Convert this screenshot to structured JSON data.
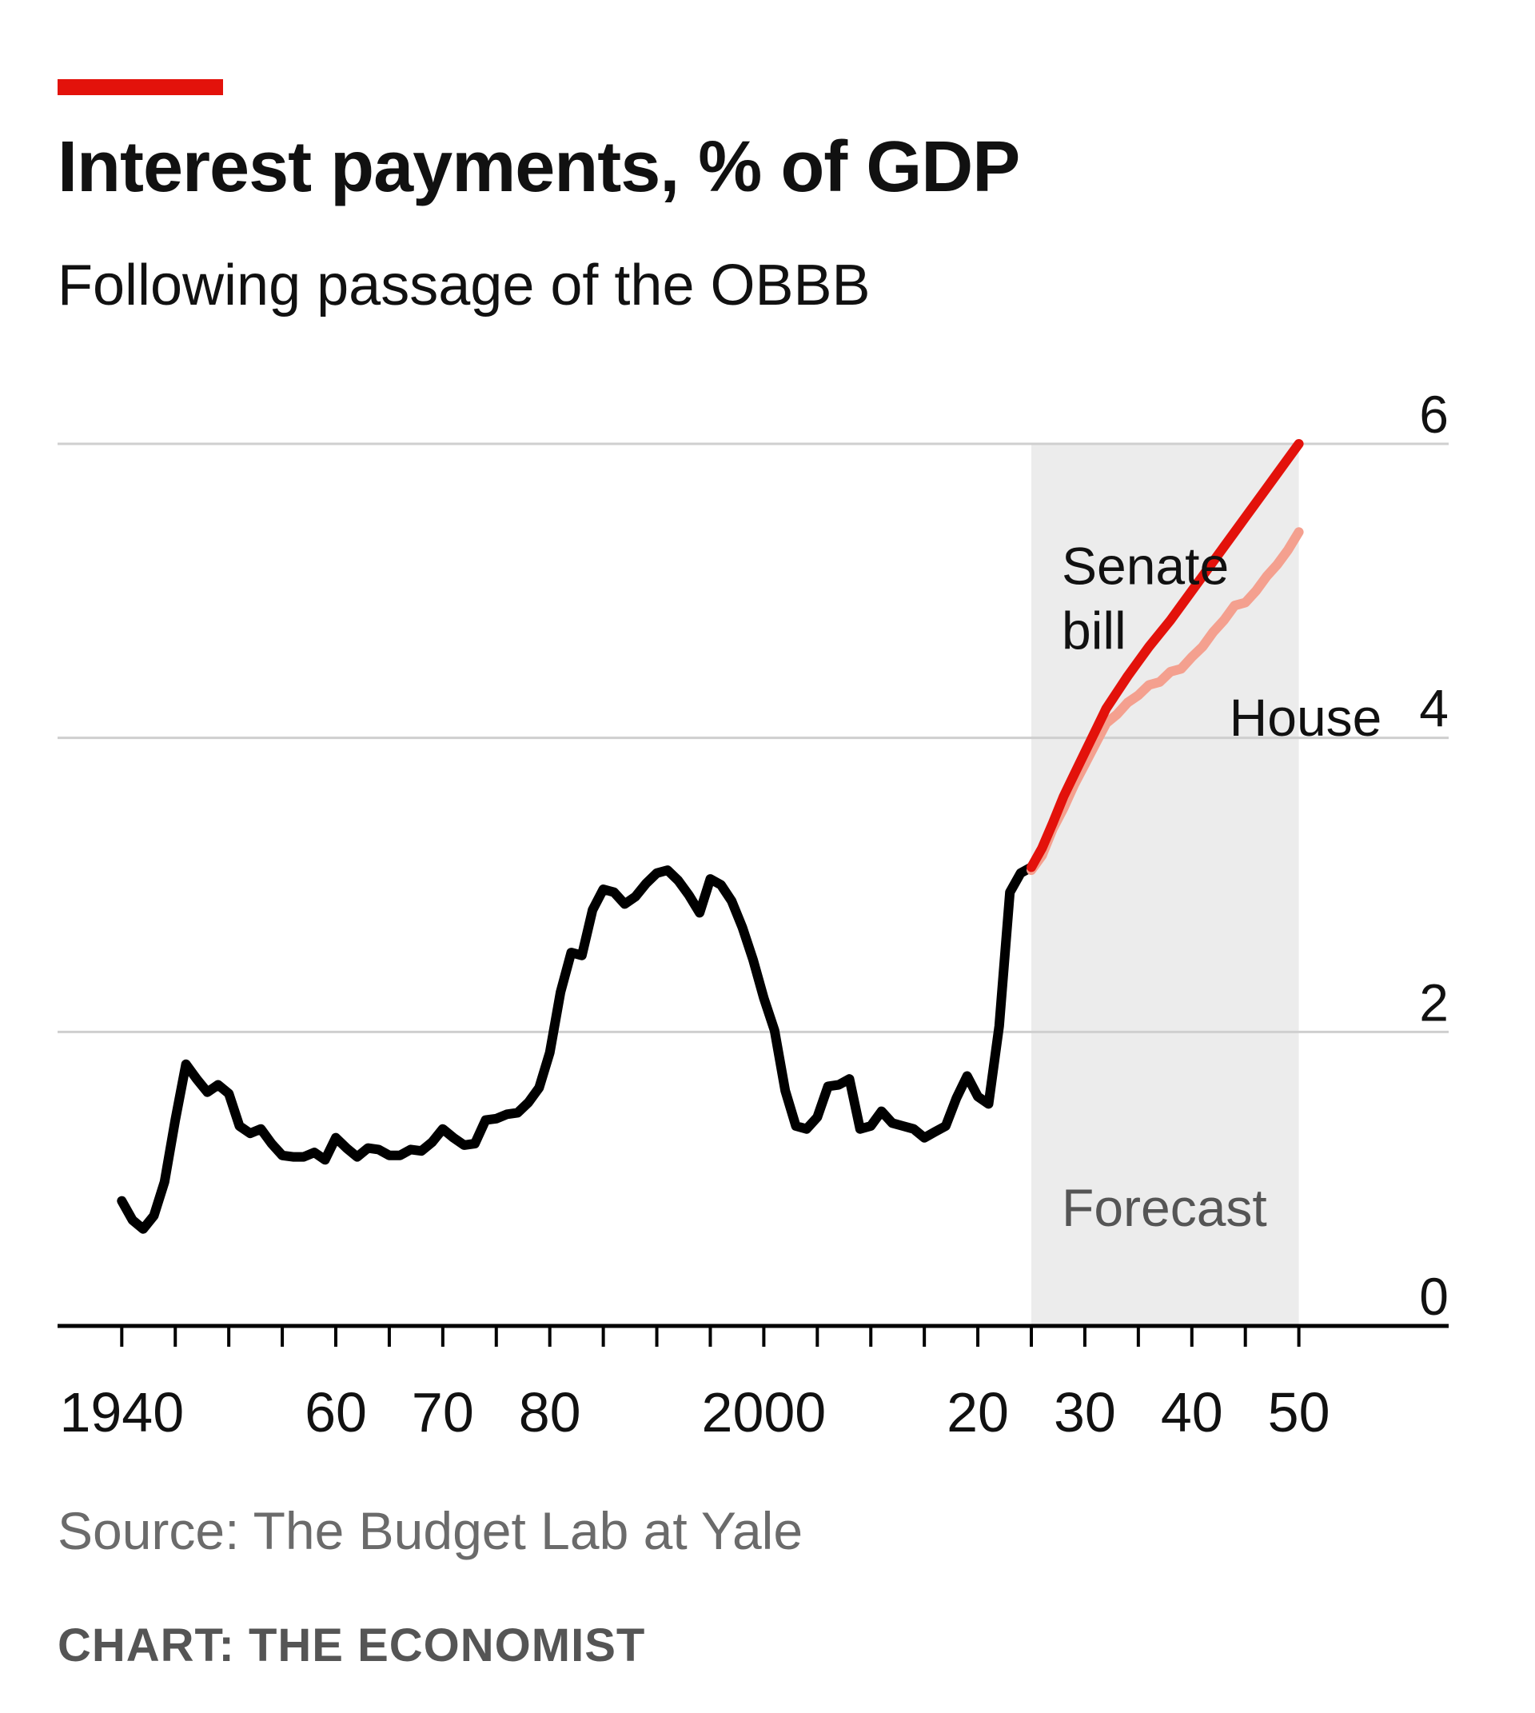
{
  "header": {
    "title": "Interest payments, % of GDP",
    "subtitle": "Following passage of the OBBB"
  },
  "footer": {
    "source": "Source: The Budget Lab at Yale",
    "credit": "CHART: THE ECONOMIST"
  },
  "colors": {
    "accent": "#e3120b",
    "historical": "#000000",
    "senate": "#e3120b",
    "house": "#f4a08f",
    "forecast_band": "#ececec",
    "grid": "#cfcfcf"
  },
  "chart_data": {
    "type": "line",
    "title": "Interest payments, % of GDP",
    "subtitle": "Following passage of the OBBB",
    "xlim": [
      1934,
      2064
    ],
    "ylim": [
      0,
      6
    ],
    "y_ticks": [
      0,
      2,
      4,
      6
    ],
    "y_tick_labels": [
      "0",
      "2",
      "4",
      "6"
    ],
    "x_ticks": [
      1940,
      1945,
      1950,
      1955,
      1960,
      1965,
      1970,
      1975,
      1980,
      1985,
      1990,
      1995,
      2000,
      2005,
      2010,
      2015,
      2020,
      2025,
      2030,
      2035,
      2040,
      2045,
      2050
    ],
    "x_tick_labels": [
      {
        "x": 1940,
        "label": "1940"
      },
      {
        "x": 1960,
        "label": "60"
      },
      {
        "x": 1970,
        "label": "70"
      },
      {
        "x": 1980,
        "label": "80"
      },
      {
        "x": 2000,
        "label": "2000"
      },
      {
        "x": 2020,
        "label": "20"
      },
      {
        "x": 2030,
        "label": "30"
      },
      {
        "x": 2040,
        "label": "40"
      },
      {
        "x": 2050,
        "label": "50"
      }
    ],
    "grid": true,
    "y_axis_position": "right",
    "forecast": {
      "start": 2025,
      "end": 2050,
      "label": "Forecast"
    },
    "series": [
      {
        "name": "",
        "color": "#000000",
        "x": [
          1940,
          1941,
          1942,
          1943,
          1944,
          1945,
          1946,
          1947,
          1948,
          1949,
          1950,
          1951,
          1952,
          1953,
          1954,
          1955,
          1956,
          1957,
          1958,
          1959,
          1960,
          1961,
          1962,
          1963,
          1964,
          1965,
          1966,
          1967,
          1968,
          1969,
          1970,
          1971,
          1972,
          1973,
          1974,
          1975,
          1976,
          1977,
          1978,
          1979,
          1980,
          1981,
          1982,
          1983,
          1984,
          1985,
          1986,
          1987,
          1988,
          1989,
          1990,
          1991,
          1992,
          1993,
          1994,
          1995,
          1996,
          1997,
          1998,
          1999,
          2000,
          2001,
          2002,
          2003,
          2004,
          2005,
          2006,
          2007,
          2008,
          2009,
          2010,
          2011,
          2012,
          2013,
          2014,
          2015,
          2016,
          2017,
          2018,
          2019,
          2020,
          2021,
          2022,
          2023,
          2024,
          2025
        ],
        "y": [
          0.85,
          0.72,
          0.66,
          0.75,
          0.98,
          1.4,
          1.78,
          1.68,
          1.59,
          1.64,
          1.58,
          1.36,
          1.31,
          1.34,
          1.24,
          1.16,
          1.15,
          1.15,
          1.18,
          1.13,
          1.28,
          1.21,
          1.15,
          1.21,
          1.2,
          1.16,
          1.16,
          1.2,
          1.19,
          1.25,
          1.34,
          1.28,
          1.23,
          1.24,
          1.4,
          1.41,
          1.44,
          1.45,
          1.52,
          1.62,
          1.86,
          2.27,
          2.54,
          2.52,
          2.83,
          2.97,
          2.95,
          2.87,
          2.92,
          3.01,
          3.08,
          3.1,
          3.03,
          2.93,
          2.81,
          3.04,
          3.0,
          2.89,
          2.71,
          2.49,
          2.23,
          2.01,
          1.6,
          1.36,
          1.34,
          1.42,
          1.63,
          1.64,
          1.68,
          1.34,
          1.36,
          1.46,
          1.38,
          1.36,
          1.34,
          1.28,
          1.32,
          1.36,
          1.55,
          1.7,
          1.56,
          1.51,
          2.04,
          2.95,
          3.08,
          3.12
        ]
      },
      {
        "name": "Senate bill",
        "color": "#e3120b",
        "x": [
          2025,
          2026,
          2027,
          2028,
          2029,
          2030,
          2031,
          2032,
          2033,
          2034,
          2035,
          2036,
          2037,
          2038,
          2039,
          2040,
          2041,
          2042,
          2043,
          2044,
          2045,
          2046,
          2047,
          2048,
          2049,
          2050
        ],
        "y": [
          3.12,
          3.25,
          3.42,
          3.6,
          3.75,
          3.9,
          4.05,
          4.2,
          4.31,
          4.42,
          4.52,
          4.62,
          4.71,
          4.8,
          4.9,
          5.0,
          5.1,
          5.2,
          5.3,
          5.4,
          5.5,
          5.6,
          5.7,
          5.8,
          5.9,
          6.0
        ]
      },
      {
        "name": "House",
        "color": "#f4a08f",
        "x": [
          2025,
          2026,
          2027,
          2028,
          2029,
          2030,
          2031,
          2032,
          2033,
          2034,
          2035,
          2036,
          2037,
          2038,
          2039,
          2040,
          2041,
          2042,
          2043,
          2044,
          2045,
          2046,
          2047,
          2048,
          2049,
          2050
        ],
        "y": [
          3.1,
          3.2,
          3.38,
          3.52,
          3.68,
          3.82,
          3.96,
          4.1,
          4.16,
          4.24,
          4.29,
          4.36,
          4.38,
          4.45,
          4.47,
          4.55,
          4.62,
          4.72,
          4.8,
          4.9,
          4.92,
          5.0,
          5.1,
          5.18,
          5.28,
          5.4
        ]
      }
    ]
  }
}
